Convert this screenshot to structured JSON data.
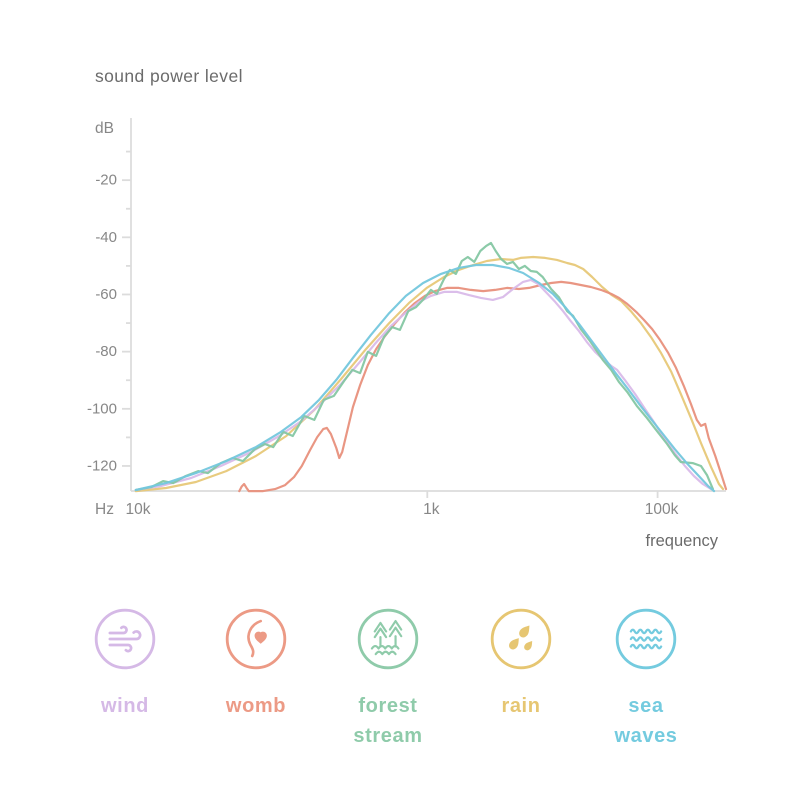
{
  "page": {
    "title": "sound power level"
  },
  "colors": {
    "axis": "#dcdcdc",
    "tick_text": "#878787",
    "unit_text": "#878787",
    "title_text": "#6b6b6b",
    "axis_label_text": "#6b6b6b"
  },
  "chart_data": {
    "type": "line",
    "title": "sound power level",
    "x_axis": {
      "unit": "Hz",
      "label": "frequency",
      "scale": "log",
      "ticks": [
        {
          "label": "10k",
          "pos": 0.005,
          "tickmark": false
        },
        {
          "label": "1k",
          "pos": 0.498,
          "tickmark": true
        },
        {
          "label": "100k",
          "pos": 0.885,
          "tickmark": true
        }
      ]
    },
    "y_axis": {
      "unit": "dB",
      "major_ticks": [
        -20,
        -40,
        -60,
        -80,
        -100,
        -120
      ],
      "range": [
        -130,
        0
      ],
      "grid": false
    },
    "legend_position": "bottom",
    "series": [
      {
        "name": "rain",
        "color": "#e7c878",
        "points": [
          [
            0.008,
            -128.8
          ],
          [
            0.059,
            -127.7
          ],
          [
            0.109,
            -125.6
          ],
          [
            0.16,
            -121.8
          ],
          [
            0.21,
            -116.5
          ],
          [
            0.261,
            -109.5
          ],
          [
            0.308,
            -100.4
          ],
          [
            0.353,
            -89.6
          ],
          [
            0.395,
            -79.1
          ],
          [
            0.434,
            -70
          ],
          [
            0.467,
            -63
          ],
          [
            0.497,
            -57.7
          ],
          [
            0.526,
            -53.9
          ],
          [
            0.551,
            -51.4
          ],
          [
            0.575,
            -49.7
          ],
          [
            0.598,
            -48.3
          ],
          [
            0.622,
            -47.6
          ],
          [
            0.642,
            -47.9
          ],
          [
            0.655,
            -47.2
          ],
          [
            0.676,
            -46.9
          ],
          [
            0.696,
            -47.2
          ],
          [
            0.716,
            -47.9
          ],
          [
            0.733,
            -49
          ],
          [
            0.746,
            -49.7
          ],
          [
            0.76,
            -51.1
          ],
          [
            0.775,
            -53.9
          ],
          [
            0.792,
            -57.4
          ],
          [
            0.808,
            -60.2
          ],
          [
            0.824,
            -62.3
          ],
          [
            0.84,
            -65.8
          ],
          [
            0.857,
            -70
          ],
          [
            0.874,
            -74.9
          ],
          [
            0.891,
            -80.5
          ],
          [
            0.908,
            -87.1
          ],
          [
            0.924,
            -94.8
          ],
          [
            0.941,
            -103.2
          ],
          [
            0.958,
            -112
          ],
          [
            0.975,
            -120.4
          ],
          [
            0.988,
            -126.3
          ],
          [
            0.995,
            -128.1
          ]
        ]
      },
      {
        "name": "womb",
        "color": "#e8907c",
        "points": [
          [
            0.182,
            -128.8
          ],
          [
            0.186,
            -127.2
          ],
          [
            0.19,
            -126.3
          ],
          [
            0.194,
            -127.6
          ],
          [
            0.198,
            -128.8
          ],
          [
            0.222,
            -128.8
          ],
          [
            0.242,
            -128.1
          ],
          [
            0.259,
            -126.7
          ],
          [
            0.274,
            -123.9
          ],
          [
            0.287,
            -120
          ],
          [
            0.301,
            -114.4
          ],
          [
            0.313,
            -109.9
          ],
          [
            0.323,
            -107.1
          ],
          [
            0.329,
            -106.7
          ],
          [
            0.336,
            -108.8
          ],
          [
            0.345,
            -113.7
          ],
          [
            0.35,
            -117.2
          ],
          [
            0.355,
            -115.1
          ],
          [
            0.363,
            -108.1
          ],
          [
            0.373,
            -99.4
          ],
          [
            0.385,
            -91.7
          ],
          [
            0.398,
            -84.7
          ],
          [
            0.412,
            -79.1
          ],
          [
            0.427,
            -74.5
          ],
          [
            0.444,
            -70
          ],
          [
            0.461,
            -66.1
          ],
          [
            0.477,
            -63
          ],
          [
            0.494,
            -60.5
          ],
          [
            0.511,
            -58.8
          ],
          [
            0.531,
            -57.7
          ],
          [
            0.551,
            -57.7
          ],
          [
            0.571,
            -58.4
          ],
          [
            0.592,
            -58.8
          ],
          [
            0.612,
            -58.4
          ],
          [
            0.632,
            -57.7
          ],
          [
            0.652,
            -58.1
          ],
          [
            0.669,
            -57.7
          ],
          [
            0.689,
            -56.7
          ],
          [
            0.706,
            -56
          ],
          [
            0.723,
            -55.6
          ],
          [
            0.739,
            -56
          ],
          [
            0.756,
            -56.7
          ],
          [
            0.773,
            -57.4
          ],
          [
            0.79,
            -58.4
          ],
          [
            0.807,
            -59.8
          ],
          [
            0.82,
            -61.2
          ],
          [
            0.834,
            -63.3
          ],
          [
            0.849,
            -66.1
          ],
          [
            0.862,
            -68.9
          ],
          [
            0.876,
            -72.1
          ],
          [
            0.889,
            -75.9
          ],
          [
            0.903,
            -80.5
          ],
          [
            0.916,
            -85.7
          ],
          [
            0.929,
            -92
          ],
          [
            0.941,
            -98.3
          ],
          [
            0.951,
            -103.9
          ],
          [
            0.958,
            -106
          ],
          [
            0.965,
            -105.3
          ],
          [
            0.971,
            -110.2
          ],
          [
            0.982,
            -116.5
          ],
          [
            0.992,
            -122.8
          ],
          [
            1,
            -128.1
          ]
        ]
      },
      {
        "name": "wind",
        "color": "#d9bbe9",
        "points": [
          [
            0.008,
            -128.4
          ],
          [
            0.05,
            -127
          ],
          [
            0.101,
            -124.2
          ],
          [
            0.151,
            -120
          ],
          [
            0.202,
            -115.1
          ],
          [
            0.249,
            -109.5
          ],
          [
            0.286,
            -104.3
          ],
          [
            0.319,
            -98.3
          ],
          [
            0.353,
            -91.3
          ],
          [
            0.383,
            -84
          ],
          [
            0.41,
            -77.3
          ],
          [
            0.437,
            -71
          ],
          [
            0.461,
            -66.5
          ],
          [
            0.484,
            -62.6
          ],
          [
            0.504,
            -60.5
          ],
          [
            0.526,
            -59.1
          ],
          [
            0.548,
            -59.1
          ],
          [
            0.568,
            -60.2
          ],
          [
            0.588,
            -61.2
          ],
          [
            0.608,
            -61.9
          ],
          [
            0.625,
            -60.9
          ],
          [
            0.642,
            -58.1
          ],
          [
            0.659,
            -55.6
          ],
          [
            0.672,
            -54.9
          ],
          [
            0.684,
            -56.3
          ],
          [
            0.699,
            -59.5
          ],
          [
            0.713,
            -62.6
          ],
          [
            0.726,
            -65.8
          ],
          [
            0.739,
            -69.3
          ],
          [
            0.753,
            -72.8
          ],
          [
            0.766,
            -76.6
          ],
          [
            0.78,
            -80.1
          ],
          [
            0.793,
            -82.6
          ],
          [
            0.807,
            -85
          ],
          [
            0.817,
            -86.4
          ],
          [
            0.83,
            -89.9
          ],
          [
            0.847,
            -94.8
          ],
          [
            0.864,
            -100.1
          ],
          [
            0.881,
            -105.3
          ],
          [
            0.897,
            -110.6
          ],
          [
            0.914,
            -115.5
          ],
          [
            0.931,
            -120
          ],
          [
            0.946,
            -123.5
          ],
          [
            0.961,
            -126.3
          ],
          [
            0.975,
            -128.1
          ]
        ]
      },
      {
        "name": "forest stream",
        "color": "#85c7a3",
        "points": [
          [
            0.008,
            -128.4
          ],
          [
            0.034,
            -127.4
          ],
          [
            0.054,
            -125.3
          ],
          [
            0.071,
            -126
          ],
          [
            0.092,
            -123.5
          ],
          [
            0.113,
            -121.8
          ],
          [
            0.129,
            -122.5
          ],
          [
            0.151,
            -119
          ],
          [
            0.171,
            -117.2
          ],
          [
            0.188,
            -118.3
          ],
          [
            0.208,
            -114.1
          ],
          [
            0.225,
            -112.3
          ],
          [
            0.239,
            -113.4
          ],
          [
            0.256,
            -108.1
          ],
          [
            0.272,
            -109.5
          ],
          [
            0.291,
            -102.5
          ],
          [
            0.308,
            -103.9
          ],
          [
            0.324,
            -96.9
          ],
          [
            0.341,
            -95.5
          ],
          [
            0.358,
            -90.3
          ],
          [
            0.372,
            -86.4
          ],
          [
            0.385,
            -87.5
          ],
          [
            0.398,
            -80.1
          ],
          [
            0.412,
            -81.5
          ],
          [
            0.425,
            -74.9
          ],
          [
            0.439,
            -71.4
          ],
          [
            0.452,
            -72.4
          ],
          [
            0.466,
            -65.8
          ],
          [
            0.479,
            -64.4
          ],
          [
            0.492,
            -61.6
          ],
          [
            0.504,
            -58.4
          ],
          [
            0.514,
            -59.8
          ],
          [
            0.526,
            -54.6
          ],
          [
            0.536,
            -51.4
          ],
          [
            0.546,
            -52.8
          ],
          [
            0.556,
            -48.3
          ],
          [
            0.566,
            -46.9
          ],
          [
            0.577,
            -48.6
          ],
          [
            0.587,
            -44.8
          ],
          [
            0.597,
            -43
          ],
          [
            0.605,
            -42
          ],
          [
            0.613,
            -44.8
          ],
          [
            0.622,
            -47.6
          ],
          [
            0.632,
            -49.3
          ],
          [
            0.642,
            -48.6
          ],
          [
            0.652,
            -51.1
          ],
          [
            0.662,
            -50
          ],
          [
            0.672,
            -51.8
          ],
          [
            0.682,
            -52.1
          ],
          [
            0.692,
            -53.9
          ],
          [
            0.706,
            -58.1
          ],
          [
            0.719,
            -60.9
          ],
          [
            0.733,
            -65.8
          ],
          [
            0.743,
            -67.5
          ],
          [
            0.756,
            -72.1
          ],
          [
            0.77,
            -75.9
          ],
          [
            0.783,
            -79.8
          ],
          [
            0.793,
            -82.9
          ],
          [
            0.807,
            -86.4
          ],
          [
            0.82,
            -90.6
          ],
          [
            0.834,
            -94.1
          ],
          [
            0.85,
            -99
          ],
          [
            0.867,
            -103.2
          ],
          [
            0.884,
            -107.8
          ],
          [
            0.901,
            -112.3
          ],
          [
            0.914,
            -116.2
          ],
          [
            0.924,
            -118.6
          ],
          [
            0.944,
            -119
          ],
          [
            0.958,
            -120
          ],
          [
            0.968,
            -123.2
          ],
          [
            0.978,
            -128.1
          ]
        ]
      },
      {
        "name": "sea waves",
        "color": "#74c7dd",
        "points": [
          [
            0.008,
            -128.4
          ],
          [
            0.059,
            -126
          ],
          [
            0.109,
            -122.5
          ],
          [
            0.16,
            -118.3
          ],
          [
            0.21,
            -113.4
          ],
          [
            0.252,
            -108.1
          ],
          [
            0.286,
            -102.9
          ],
          [
            0.316,
            -96.9
          ],
          [
            0.345,
            -89.9
          ],
          [
            0.373,
            -82.2
          ],
          [
            0.403,
            -74.2
          ],
          [
            0.434,
            -66.5
          ],
          [
            0.462,
            -60.5
          ],
          [
            0.491,
            -56
          ],
          [
            0.521,
            -52.8
          ],
          [
            0.551,
            -50.7
          ],
          [
            0.58,
            -49.7
          ],
          [
            0.608,
            -49.7
          ],
          [
            0.635,
            -50.7
          ],
          [
            0.659,
            -52.5
          ],
          [
            0.686,
            -56
          ],
          [
            0.709,
            -59.8
          ],
          [
            0.731,
            -64.7
          ],
          [
            0.753,
            -70.3
          ],
          [
            0.773,
            -75.9
          ],
          [
            0.793,
            -81.5
          ],
          [
            0.813,
            -87.1
          ],
          [
            0.834,
            -92.7
          ],
          [
            0.854,
            -98.3
          ],
          [
            0.874,
            -103.6
          ],
          [
            0.894,
            -108.8
          ],
          [
            0.914,
            -114.1
          ],
          [
            0.934,
            -119
          ],
          [
            0.953,
            -123.2
          ],
          [
            0.97,
            -127
          ],
          [
            0.98,
            -128.8
          ]
        ]
      }
    ]
  },
  "legend": {
    "items": [
      {
        "id": "wind",
        "line1": "wind",
        "line2": "",
        "color": "#d5b9e6"
      },
      {
        "id": "womb",
        "line1": "womb",
        "line2": "",
        "color": "#ec9a85"
      },
      {
        "id": "forest-stream",
        "line1": "forest",
        "line2": "stream",
        "color": "#8fcbaa"
      },
      {
        "id": "rain",
        "line1": "rain",
        "line2": "",
        "color": "#e6c672"
      },
      {
        "id": "sea-waves",
        "line1": "sea",
        "line2": "waves",
        "color": "#74cbdf"
      }
    ]
  }
}
